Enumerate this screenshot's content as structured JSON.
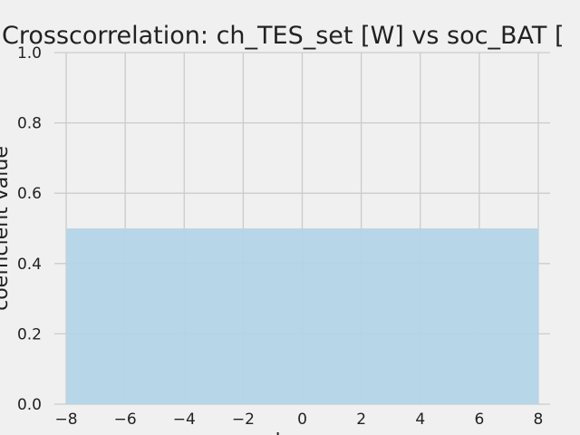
{
  "chart_data": {
    "type": "area",
    "title": "Crosscorrelation: ch_TES_set [W] vs soc_BAT [",
    "xlabel": "k",
    "ylabel": "coefficient value",
    "x": [
      -8,
      8
    ],
    "series": [
      {
        "values": [
          0.5,
          0.5
        ]
      }
    ],
    "xlim": [
      -8.4,
      8.4
    ],
    "ylim": [
      0,
      1
    ],
    "xticks": [
      -8,
      -6,
      -4,
      -2,
      0,
      2,
      4,
      6,
      8
    ],
    "xtick_labels": [
      "−8",
      "−6",
      "−4",
      "−2",
      "0",
      "2",
      "4",
      "6",
      "8"
    ],
    "yticks": [
      0,
      0.2,
      0.4,
      0.6,
      0.8,
      1
    ],
    "ytick_labels": [
      "0.0",
      "0.2",
      "0.4",
      "0.6",
      "0.8",
      "1.0"
    ],
    "grid": true,
    "colors": {
      "background": "#f0f0f0",
      "grid": "#cbcbcb",
      "fill": "#b3d5e8",
      "text": "#222222"
    }
  }
}
